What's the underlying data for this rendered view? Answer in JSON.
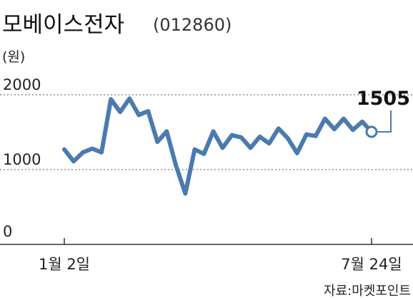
{
  "chart_data": {
    "type": "line",
    "title": "모베이스전자",
    "stock_code": "(012860)",
    "y_unit": "(원)",
    "ylim": [
      0,
      2000
    ],
    "y_ticks": [
      "2000",
      "1000",
      "0"
    ],
    "x_ticks": [
      "1월 2일",
      "7월 24일"
    ],
    "last_value_label": "1505",
    "source": "자료:마켓포인트",
    "grid": "dashed horizontal at 1000 and 2000",
    "line_color": "#4a7ab0",
    "series": [
      {
        "values": [
          1270,
          1110,
          1230,
          1280,
          1230,
          1940,
          1770,
          1950,
          1730,
          1780,
          1370,
          1510,
          1050,
          680,
          1270,
          1210,
          1510,
          1290,
          1460,
          1430,
          1290,
          1440,
          1350,
          1550,
          1420,
          1220,
          1470,
          1450,
          1680,
          1540,
          1680,
          1530,
          1640,
          1505
        ]
      }
    ]
  }
}
